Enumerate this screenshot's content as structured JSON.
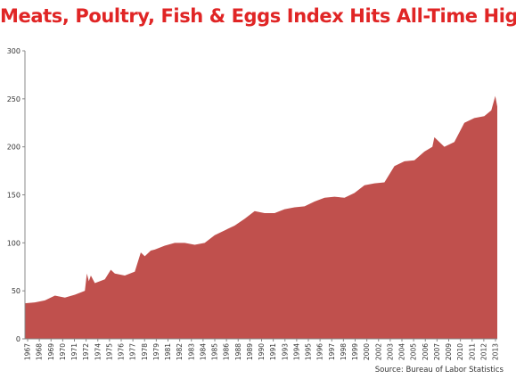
{
  "title": "Meats, Poultry, Fish & Eggs Index Hits All-Time High",
  "source": "Source: Bureau of Labor Statistics",
  "colors": {
    "title": "#e02525",
    "area": "#c0504d",
    "axis": "#888888",
    "grid": "#e0e0e0"
  },
  "chart_data": {
    "type": "area",
    "title": "Meats, Poultry, Fish & Eggs Index Hits All-Time High",
    "xlabel": "",
    "ylabel": "",
    "xlim": [
      1967,
      2014.3
    ],
    "ylim": [
      0,
      300
    ],
    "grid": {
      "x": false,
      "y": false
    },
    "legend": "none",
    "y_ticks": [
      0,
      50,
      100,
      150,
      200,
      250,
      300
    ],
    "x_tick_labels": [
      "1967",
      "1968",
      "1969",
      "1970",
      "1971",
      "1972",
      "1974",
      "1975",
      "1976",
      "1977",
      "1978",
      "1979",
      "1981",
      "1982",
      "1983",
      "1984",
      "1985",
      "1986",
      "1988",
      "1989",
      "1990",
      "1991",
      "1993",
      "1994",
      "1995",
      "1996",
      "1997",
      "1998",
      "1999",
      "2000",
      "2002",
      "2003",
      "2004",
      "2005",
      "2006",
      "2007",
      "2009",
      "2010",
      "2011",
      "2012",
      "2013"
    ],
    "series": [
      {
        "name": "",
        "x": [
          1967,
          1968,
          1969,
          1970,
          1971,
          1972,
          1973.0,
          1973.2,
          1973.4,
          1973.6,
          1974,
          1975,
          1975.6,
          1976,
          1977,
          1978,
          1978.6,
          1979,
          1979.6,
          1980,
          1981,
          1982,
          1983,
          1984,
          1985,
          1986,
          1987,
          1988,
          1989,
          1990,
          1991,
          1992,
          1993,
          1994,
          1995,
          1996,
          1997,
          1998,
          1999,
          2000,
          2001,
          2002,
          2003,
          2004,
          2005,
          2006,
          2007,
          2007.8,
          2008,
          2008.5,
          2009,
          2010,
          2011,
          2012,
          2013,
          2013.7,
          2014.1,
          2014.3
        ],
        "values": [
          37,
          38,
          40,
          45,
          43,
          46,
          50,
          68,
          60,
          66,
          58,
          62,
          72,
          68,
          66,
          70,
          90,
          86,
          92,
          93,
          97,
          100,
          100,
          98,
          100,
          108,
          113,
          118,
          125,
          133,
          131,
          131,
          135,
          137,
          138,
          143,
          147,
          148,
          147,
          152,
          160,
          162,
          163,
          180,
          185,
          186,
          195,
          200,
          210,
          205,
          200,
          205,
          225,
          230,
          232,
          238,
          253,
          242
        ]
      }
    ]
  }
}
